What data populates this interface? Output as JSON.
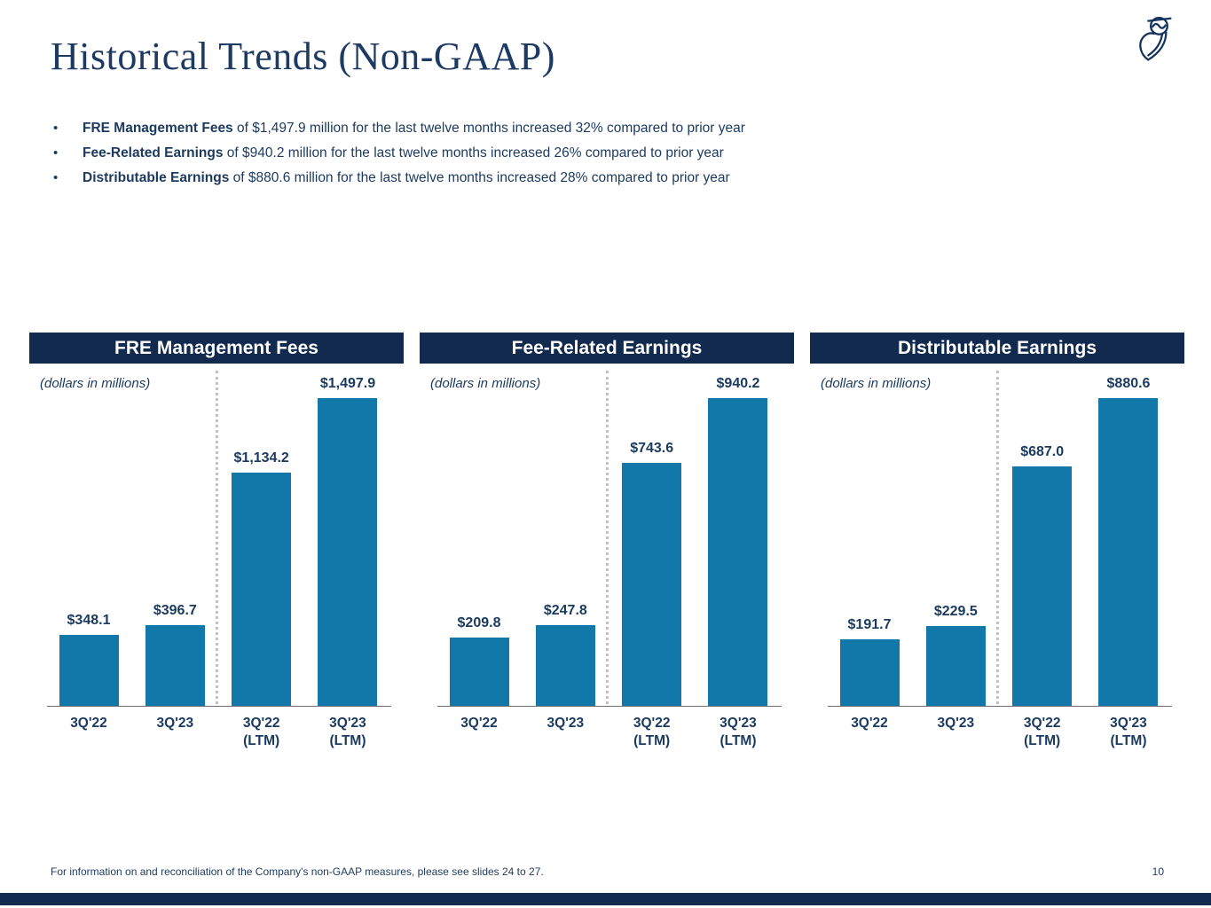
{
  "slide": {
    "title": "Historical Trends (Non-GAAP)",
    "logo_icon": "owl-logo",
    "footnote": "For information on and reconciliation of the Company's non-GAAP measures, please see slides 24 to 27.",
    "page_number": "10"
  },
  "bullets": [
    {
      "lead": "FRE Management Fees",
      "text": " of $1,497.9 million for the last twelve months increased 32% compared to prior year"
    },
    {
      "lead": "Fee-Related Earnings",
      "text": " of $940.2 million for the last twelve months increased 26% compared to prior year"
    },
    {
      "lead": "Distributable Earnings",
      "text": " of $880.6 million for the last twelve months increased 28% compared to prior year"
    }
  ],
  "colors": {
    "navy_text": "#1c3a5e",
    "header_bg": "#122a4e",
    "bar_blue": "#1278aa",
    "axis_gray": "#6e6e6e",
    "divider_dots_gray": "#c0c0c0",
    "footer_bar_navy": "#122a4e"
  },
  "chart_data": [
    {
      "type": "bar",
      "title": "FRE Management Fees",
      "units_label": "(dollars in millions)",
      "categories": [
        "3Q'22",
        "3Q'23",
        "3Q'22\n(LTM)",
        "3Q'23\n(LTM)"
      ],
      "values": [
        348.1,
        396.7,
        1134.2,
        1497.9
      ],
      "value_labels": [
        "$348.1",
        "$396.7",
        "$1,134.2",
        "$1,497.9"
      ],
      "ylim": [
        0,
        1497.9
      ],
      "grid": false,
      "separator_after_index": 1
    },
    {
      "type": "bar",
      "title": "Fee-Related Earnings",
      "units_label": "(dollars in millions)",
      "categories": [
        "3Q'22",
        "3Q'23",
        "3Q'22\n(LTM)",
        "3Q'23\n(LTM)"
      ],
      "values": [
        209.8,
        247.8,
        743.6,
        940.2
      ],
      "value_labels": [
        "$209.8",
        "$247.8",
        "$743.6",
        "$940.2"
      ],
      "ylim": [
        0,
        940.2
      ],
      "grid": false,
      "separator_after_index": 1
    },
    {
      "type": "bar",
      "title": "Distributable Earnings",
      "units_label": "(dollars in millions)",
      "categories": [
        "3Q'22",
        "3Q'23",
        "3Q'22\n(LTM)",
        "3Q'23\n(LTM)"
      ],
      "values": [
        191.7,
        229.5,
        687.0,
        880.6
      ],
      "value_labels": [
        "$191.7",
        "$229.5",
        "$687.0",
        "$880.6"
      ],
      "ylim": [
        0,
        880.6
      ],
      "grid": false,
      "separator_after_index": 1
    }
  ]
}
